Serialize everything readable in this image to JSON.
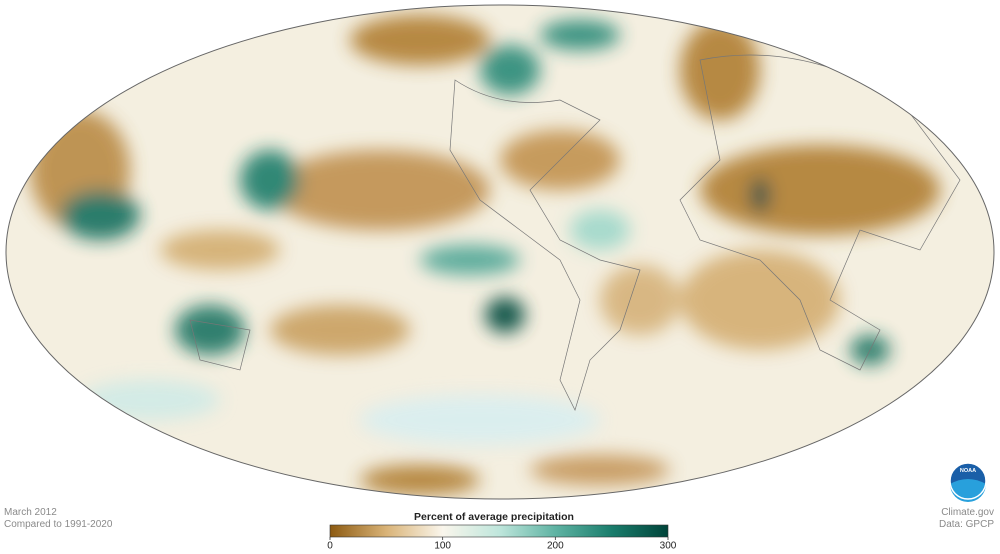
{
  "map": {
    "date": "March 2012",
    "baseline": "Compared to 1991-2020",
    "credit": "Climate.gov",
    "source": "Data: GPCP",
    "logo": "NOAA"
  },
  "colorbar": {
    "title": "Percent of average precipitation",
    "range": [
      0,
      300
    ],
    "ticks": [
      0,
      100,
      200,
      300
    ],
    "colors": [
      {
        "value": 0,
        "color": "#8c5a11"
      },
      {
        "value": 50,
        "color": "#d9b377"
      },
      {
        "value": 100,
        "color": "#faf6ec"
      },
      {
        "value": 150,
        "color": "#bfe6dc"
      },
      {
        "value": 200,
        "color": "#5fb3a3"
      },
      {
        "value": 250,
        "color": "#1a7d6c"
      },
      {
        "value": 300,
        "color": "#00443a"
      }
    ]
  }
}
